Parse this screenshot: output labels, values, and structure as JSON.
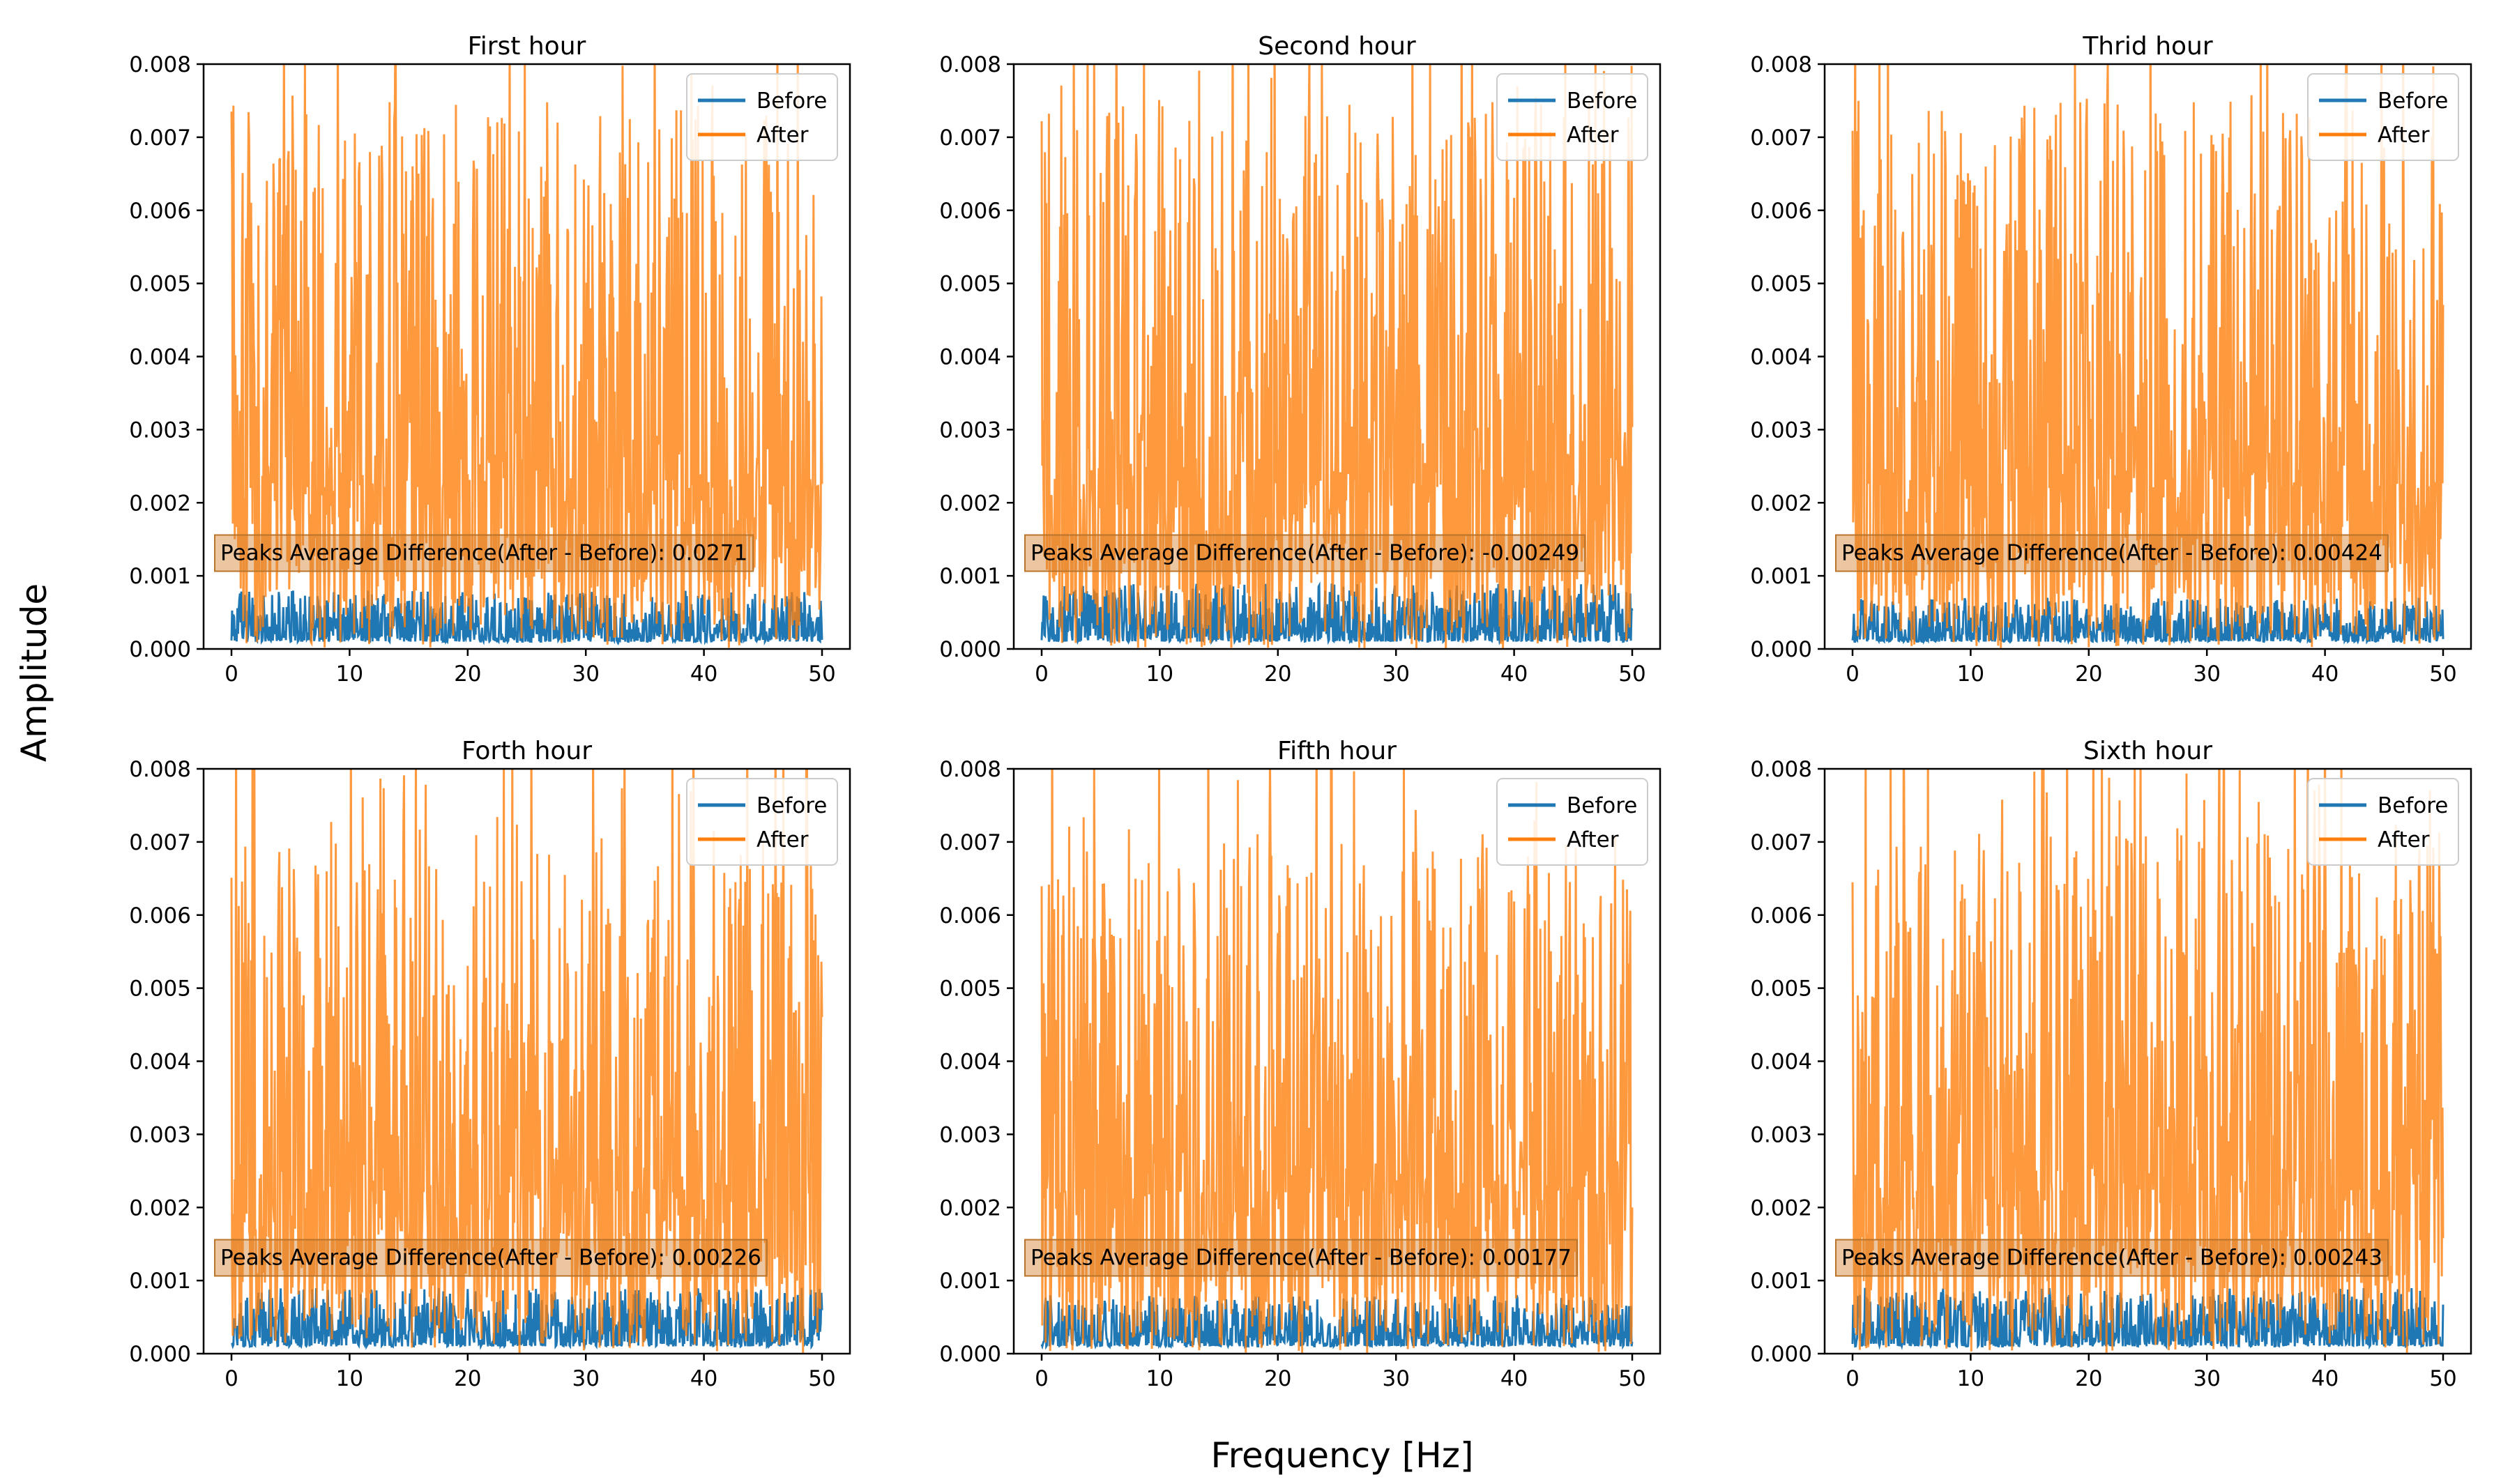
{
  "figure": {
    "ylabel": "Amplitude",
    "xlabel": "Frequency [Hz]"
  },
  "colors": {
    "before": "#1f77b4",
    "after": "#ff7f0e"
  },
  "legend": {
    "before": "Before",
    "after": "After"
  },
  "chart_data": [
    {
      "type": "line",
      "title": "First hour",
      "annotation": "Peaks Average Difference(After - Before): 0.0271",
      "xlim": [
        0,
        50
      ],
      "ylim": [
        0,
        0.008
      ],
      "xticks": [
        "0",
        "10",
        "20",
        "30",
        "40",
        "50"
      ],
      "yticks": [
        "0.000",
        "0.001",
        "0.002",
        "0.003",
        "0.004",
        "0.005",
        "0.006",
        "0.007",
        "0.008"
      ],
      "series": [
        {
          "name": "Before",
          "typical_range": [
            0.0001,
            0.0008
          ]
        },
        {
          "name": "After",
          "typical_range": [
            0.0,
            0.0075
          ],
          "peak": 0.008
        }
      ],
      "legend_position": "top-right"
    },
    {
      "type": "line",
      "title": "Second hour",
      "annotation": "Peaks Average Difference(After - Before): -0.00249",
      "xlim": [
        0,
        50
      ],
      "ylim": [
        0,
        0.008
      ],
      "xticks": [
        "0",
        "10",
        "20",
        "30",
        "40",
        "50"
      ],
      "yticks": [
        "0.000",
        "0.001",
        "0.002",
        "0.003",
        "0.004",
        "0.005",
        "0.006",
        "0.007",
        "0.008"
      ],
      "series": [
        {
          "name": "Before",
          "typical_range": [
            0.0001,
            0.0009
          ]
        },
        {
          "name": "After",
          "typical_range": [
            0.0,
            0.0075
          ],
          "peak": 0.008
        }
      ],
      "legend_position": "top-right"
    },
    {
      "type": "line",
      "title": "Thrid hour",
      "annotation": "Peaks Average Difference(After - Before): 0.00424",
      "xlim": [
        0,
        50
      ],
      "ylim": [
        0,
        0.008
      ],
      "xticks": [
        "0",
        "10",
        "20",
        "30",
        "40",
        "50"
      ],
      "yticks": [
        "0.000",
        "0.001",
        "0.002",
        "0.003",
        "0.004",
        "0.005",
        "0.006",
        "0.007",
        "0.008"
      ],
      "series": [
        {
          "name": "Before",
          "typical_range": [
            0.0001,
            0.0007
          ]
        },
        {
          "name": "After",
          "typical_range": [
            0.0,
            0.0075
          ],
          "peak": 0.008
        }
      ],
      "legend_position": "top-right"
    },
    {
      "type": "line",
      "title": "Forth hour",
      "annotation": "Peaks Average Difference(After - Before): 0.00226",
      "xlim": [
        0,
        50
      ],
      "ylim": [
        0,
        0.008
      ],
      "xticks": [
        "0",
        "10",
        "20",
        "30",
        "40",
        "50"
      ],
      "yticks": [
        "0.000",
        "0.001",
        "0.002",
        "0.003",
        "0.004",
        "0.005",
        "0.006",
        "0.007",
        "0.008"
      ],
      "series": [
        {
          "name": "Before",
          "typical_range": [
            0.0001,
            0.0009
          ]
        },
        {
          "name": "After",
          "typical_range": [
            0.0,
            0.007
          ],
          "peak": 0.008
        }
      ],
      "legend_position": "top-right"
    },
    {
      "type": "line",
      "title": "Fifth hour",
      "annotation": "Peaks Average Difference(After - Before): 0.00177",
      "xlim": [
        0,
        50
      ],
      "ylim": [
        0,
        0.008
      ],
      "xticks": [
        "0",
        "10",
        "20",
        "30",
        "40",
        "50"
      ],
      "yticks": [
        "0.000",
        "0.001",
        "0.002",
        "0.003",
        "0.004",
        "0.005",
        "0.006",
        "0.007",
        "0.008"
      ],
      "series": [
        {
          "name": "Before",
          "typical_range": [
            0.0001,
            0.0008
          ]
        },
        {
          "name": "After",
          "typical_range": [
            0.0,
            0.007
          ],
          "peak": 0.0078
        }
      ],
      "legend_position": "top-right"
    },
    {
      "type": "line",
      "title": "Sixth hour",
      "annotation": "Peaks Average Difference(After - Before): 0.00243",
      "xlim": [
        0,
        50
      ],
      "ylim": [
        0,
        0.008
      ],
      "xticks": [
        "0",
        "10",
        "20",
        "30",
        "40",
        "50"
      ],
      "yticks": [
        "0.000",
        "0.001",
        "0.002",
        "0.003",
        "0.004",
        "0.005",
        "0.006",
        "0.007",
        "0.008"
      ],
      "series": [
        {
          "name": "Before",
          "typical_range": [
            0.0001,
            0.0009
          ]
        },
        {
          "name": "After",
          "typical_range": [
            0.0,
            0.0072
          ],
          "peak": 0.008
        }
      ],
      "legend_position": "top-right"
    }
  ]
}
